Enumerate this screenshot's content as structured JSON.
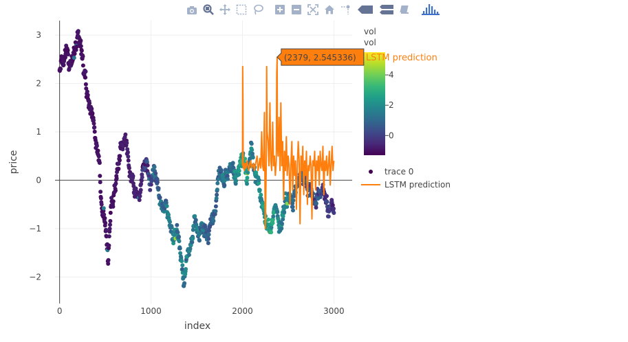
{
  "modebar": {
    "buttons": [
      {
        "name": "camera-icon",
        "title": "Download plot as a png"
      },
      {
        "name": "zoom-icon",
        "title": "Zoom"
      },
      {
        "name": "pan-icon",
        "title": "Pan"
      },
      {
        "name": "box-select-icon",
        "title": "Box Select"
      },
      {
        "name": "lasso-select-icon",
        "title": "Lasso Select"
      },
      {
        "name": "zoom-in-icon",
        "title": "Zoom in"
      },
      {
        "name": "zoom-out-icon",
        "title": "Zoom out"
      },
      {
        "name": "autoscale-icon",
        "title": "Autoscale"
      },
      {
        "name": "home-icon",
        "title": "Reset axes"
      },
      {
        "name": "spike-lines-icon",
        "title": "Toggle Spike Lines"
      },
      {
        "name": "hover-closest-icon",
        "title": "Show closest data on hover"
      },
      {
        "name": "hover-compare-icon",
        "title": "Compare data on hover"
      },
      {
        "name": "edit-chart-icon",
        "title": "Edit in Chart Studio"
      },
      {
        "name": "plotly-logo-icon",
        "title": "Produced with Plotly"
      }
    ],
    "colors": {
      "icon": "#a3b2c9",
      "active": "#657394",
      "logo": "#3f6fce"
    }
  },
  "chart_data": {
    "type": "scatter",
    "xlabel": "index",
    "ylabel": "price",
    "xlim": [
      -50,
      3200
    ],
    "ylim": [
      -2.55,
      3.3
    ],
    "xticks": [
      0,
      1000,
      2000,
      3000
    ],
    "xtick_labels": [
      "0",
      "1000",
      "2000",
      "3000"
    ],
    "yticks": [
      -2,
      -1,
      0,
      1,
      2,
      3
    ],
    "ytick_labels": [
      "−2",
      "−1",
      "0",
      "1",
      "2",
      "3"
    ],
    "grid": true,
    "zero_line": true,
    "legend_position": "right",
    "colorbar": {
      "title_line1": "vol",
      "title_line2": "vol",
      "colorscale": "viridis",
      "range": [
        -1.3,
        5.5
      ],
      "ticks": [
        0,
        2,
        4
      ],
      "tick_labels": [
        "0",
        "2",
        "4"
      ]
    },
    "series": [
      {
        "name": "trace 0",
        "mode": "markers",
        "x_start": 0,
        "x_end": 3000,
        "price_anchors": [
          [
            0,
            2.3
          ],
          [
            40,
            2.2
          ],
          [
            80,
            2.6
          ],
          [
            120,
            2.3
          ],
          [
            160,
            2.5
          ],
          [
            200,
            2.95
          ],
          [
            230,
            2.7
          ],
          [
            260,
            2.2
          ],
          [
            300,
            1.7
          ],
          [
            330,
            1.5
          ],
          [
            360,
            1.2
          ],
          [
            400,
            0.9
          ],
          [
            430,
            0.3
          ],
          [
            460,
            -0.5
          ],
          [
            500,
            -0.9
          ],
          [
            530,
            -1.6
          ],
          [
            560,
            -0.6
          ],
          [
            600,
            -0.1
          ],
          [
            640,
            0.2
          ],
          [
            680,
            0.8
          ],
          [
            720,
            0.9
          ],
          [
            760,
            0.3
          ],
          [
            800,
            0.1
          ],
          [
            840,
            -0.4
          ],
          [
            880,
            -0.3
          ],
          [
            910,
            0.0
          ],
          [
            950,
            0.3
          ],
          [
            990,
            0.0
          ],
          [
            1030,
            0.2
          ],
          [
            1070,
            0.0
          ],
          [
            1110,
            -0.4
          ],
          [
            1150,
            -0.6
          ],
          [
            1200,
            -0.8
          ],
          [
            1240,
            -1.3
          ],
          [
            1280,
            -1.0
          ],
          [
            1320,
            -1.6
          ],
          [
            1360,
            -2.1
          ],
          [
            1400,
            -1.5
          ],
          [
            1440,
            -1.2
          ],
          [
            1480,
            -0.8
          ],
          [
            1520,
            -1.1
          ],
          [
            1560,
            -0.9
          ],
          [
            1620,
            -1.2
          ],
          [
            1680,
            -0.7
          ],
          [
            1720,
            -0.2
          ],
          [
            1760,
            0.1
          ],
          [
            1800,
            -0.1
          ],
          [
            1850,
            0.2
          ],
          [
            1900,
            0.3
          ],
          [
            1960,
            0.1
          ],
          [
            2000,
            0.3
          ],
          [
            2050,
            0.1
          ],
          [
            2100,
            0.6
          ],
          [
            2150,
            0.2
          ],
          [
            2200,
            -0.3
          ],
          [
            2240,
            -0.8
          ],
          [
            2280,
            -1.0
          ],
          [
            2320,
            -0.9
          ],
          [
            2360,
            -0.6
          ],
          [
            2400,
            -1.0
          ],
          [
            2450,
            -0.7
          ],
          [
            2500,
            -0.3
          ],
          [
            2550,
            -0.6
          ],
          [
            2600,
            -0.2
          ],
          [
            2650,
            0.2
          ],
          [
            2700,
            -0.2
          ],
          [
            2750,
            -0.1
          ],
          [
            2800,
            -0.4
          ],
          [
            2850,
            -0.2
          ],
          [
            2900,
            -0.3
          ],
          [
            2950,
            -0.6
          ],
          [
            3000,
            -0.6
          ]
        ],
        "color_by": "vol",
        "vol_anchors": [
          [
            0,
            -1.0
          ],
          [
            550,
            -1.0
          ],
          [
            900,
            -0.6
          ],
          [
            1000,
            0.3
          ],
          [
            1100,
            1.2
          ],
          [
            1300,
            1.5
          ],
          [
            1500,
            1.3
          ],
          [
            1700,
            0.8
          ],
          [
            1900,
            1.5
          ],
          [
            2000,
            2.5
          ],
          [
            2100,
            1.5
          ],
          [
            2300,
            2.5
          ],
          [
            2500,
            1.5
          ],
          [
            2700,
            0.5
          ],
          [
            2900,
            0.0
          ],
          [
            3000,
            -0.2
          ]
        ]
      },
      {
        "name": "LSTM prediction",
        "mode": "lines",
        "color": "#ff7f0e",
        "x": [
          2000,
          2002,
          2005,
          2008,
          2012,
          2015,
          2020,
          2030,
          2040,
          2050,
          2060,
          2070,
          2080,
          2090,
          2100,
          2110,
          2120,
          2130,
          2140,
          2150,
          2160,
          2170,
          2180,
          2190,
          2200,
          2210,
          2220,
          2230,
          2240,
          2250,
          2260,
          2265,
          2270,
          2280,
          2290,
          2300,
          2310,
          2320,
          2330,
          2340,
          2350,
          2360,
          2370,
          2375,
          2379,
          2383,
          2390,
          2400,
          2410,
          2420,
          2430,
          2440,
          2450,
          2460,
          2470,
          2480,
          2490,
          2500,
          2510,
          2520,
          2530,
          2540,
          2550,
          2560,
          2570,
          2580,
          2590,
          2600,
          2610,
          2620,
          2630,
          2640,
          2650,
          2660,
          2670,
          2680,
          2690,
          2700,
          2710,
          2720,
          2730,
          2740,
          2750,
          2760,
          2770,
          2780,
          2790,
          2800,
          2810,
          2820,
          2830,
          2840,
          2850,
          2860,
          2870,
          2880,
          2890,
          2900,
          2910,
          2920,
          2930,
          2940,
          2950,
          2960,
          2970,
          2980,
          2990,
          3000
        ],
        "y": [
          0.3,
          2.35,
          1.6,
          0.25,
          0.35,
          0.3,
          0.2,
          0.35,
          0.25,
          0.4,
          0.3,
          0.2,
          0.35,
          0.4,
          0.25,
          0.3,
          0.35,
          0.2,
          0.3,
          0.4,
          0.5,
          0.2,
          0.3,
          0.45,
          0.25,
          1.0,
          0.3,
          0.2,
          1.4,
          -1.0,
          0.3,
          2.35,
          1.0,
          0.8,
          0.3,
          1.6,
          0.4,
          0.2,
          1.2,
          0.3,
          0.5,
          0.1,
          0.4,
          2.2,
          2.545,
          0.7,
          0.5,
          1.3,
          0.2,
          1.6,
          0.3,
          0.8,
          -0.4,
          0.6,
          0.2,
          0.9,
          0.1,
          0.5,
          0.3,
          -0.5,
          0.3,
          0.8,
          -0.2,
          0.5,
          0.1,
          0.4,
          -0.6,
          0.3,
          0.8,
          0.4,
          -0.9,
          0.5,
          0.2,
          0.7,
          -0.3,
          0.4,
          0.1,
          0.6,
          -0.5,
          0.3,
          0.2,
          0.5,
          0.3,
          -0.8,
          0.4,
          0.3,
          0.6,
          -0.2,
          0.4,
          0.2,
          0.5,
          -0.1,
          0.6,
          0.3,
          0.2,
          0.7,
          -0.3,
          0.4,
          0.2,
          0.5,
          0.1,
          0.3,
          0.6,
          -0.1,
          0.3,
          0.7,
          0.2,
          0.4
        ]
      }
    ],
    "hover": {
      "text": "(2379, 2.545336)",
      "series_label": "LSTM prediction",
      "x": 2379,
      "y": 2.545336
    }
  }
}
